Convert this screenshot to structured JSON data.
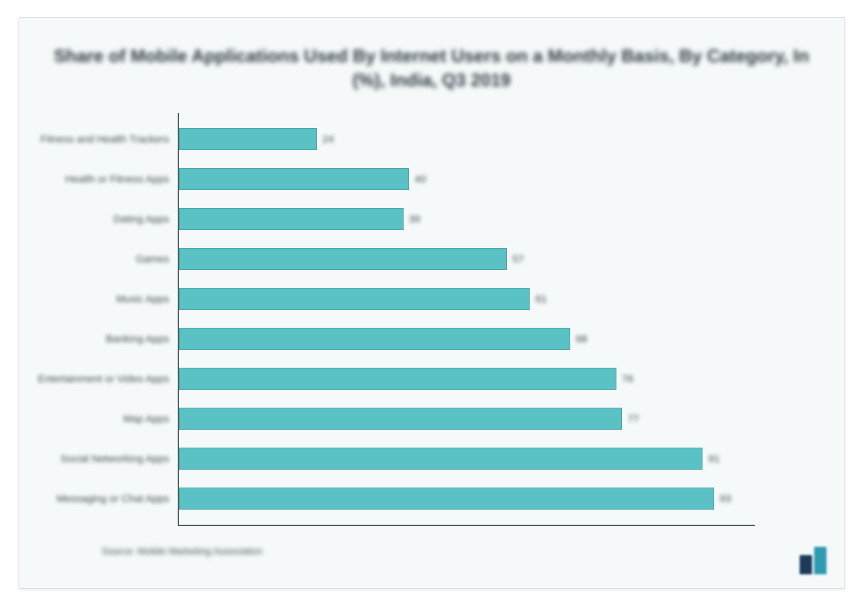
{
  "card": {
    "background_color": "#f5f9fa",
    "border_color": "#d8e0e3"
  },
  "title": {
    "text": "Share of Mobile Applications Used By Internet Users on a Monthly Basis, By Category, In (%), India, Q3 2019",
    "fontsize": 26,
    "color": "#2f3a40"
  },
  "chart": {
    "type": "bar-horizontal",
    "bar_color": "#5ac1c4",
    "axis_color": "#555d61",
    "label_color": "#414b50",
    "value_color": "#414b50",
    "max_value": 100,
    "categories": [
      {
        "label": "Fitness and Health Trackers",
        "value": 24
      },
      {
        "label": "Health or Fitness Apps",
        "value": 40
      },
      {
        "label": "Dating Apps",
        "value": 39
      },
      {
        "label": "Games",
        "value": 57
      },
      {
        "label": "Music Apps",
        "value": 61
      },
      {
        "label": "Banking Apps",
        "value": 68
      },
      {
        "label": "Entertainment or Video Apps",
        "value": 76
      },
      {
        "label": "Map Apps",
        "value": 77
      },
      {
        "label": "Social Networking Apps",
        "value": 91
      },
      {
        "label": "Messaging or Chat Apps",
        "value": 93
      }
    ]
  },
  "source": {
    "text": "Source: Mobile Marketing Association",
    "color": "#414b50"
  },
  "logo": {
    "bar1_color": "#1b3a5c",
    "bar1_height": 28,
    "bar2_color": "#2f9bb0",
    "bar2_height": 40
  }
}
